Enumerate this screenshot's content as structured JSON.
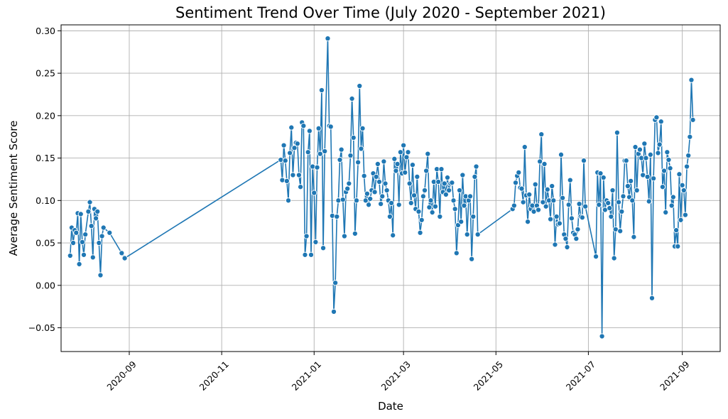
{
  "chart_data": {
    "type": "line",
    "title": "Sentiment Trend Over Time (July 2020 - September 2021)",
    "xlabel": "Date",
    "ylabel": "Average Sentiment Score",
    "xlim": [
      "2020-07-18",
      "2021-09-26"
    ],
    "ylim": [
      -0.078,
      0.307
    ],
    "grid": true,
    "legend": "none",
    "color": "#1f77b4",
    "marker": "circle",
    "x_ticks": [
      "2020-09",
      "2020-11",
      "2021-01",
      "2021-03",
      "2021-05",
      "2021-07",
      "2021-09"
    ],
    "y_ticks": [
      "−0.05",
      "0.00",
      "0.05",
      "0.10",
      "0.15",
      "0.20",
      "0.25",
      "0.30"
    ],
    "series": [
      {
        "points": [
          [
            "2020-07-24",
            0.035
          ],
          [
            "2020-07-25",
            0.068
          ],
          [
            "2020-07-26",
            0.05
          ],
          [
            "2020-07-27",
            0.065
          ],
          [
            "2020-07-28",
            0.062
          ],
          [
            "2020-07-29",
            0.085
          ],
          [
            "2020-07-30",
            0.025
          ],
          [
            "2020-07-31",
            0.084
          ],
          [
            "2020-08-01",
            0.051
          ],
          [
            "2020-08-02",
            0.036
          ],
          [
            "2020-08-03",
            0.06
          ],
          [
            "2020-08-05",
            0.087
          ],
          [
            "2020-08-06",
            0.098
          ],
          [
            "2020-08-07",
            0.07
          ],
          [
            "2020-08-08",
            0.033
          ],
          [
            "2020-08-09",
            0.09
          ],
          [
            "2020-08-10",
            0.079
          ],
          [
            "2020-08-11",
            0.087
          ],
          [
            "2020-08-12",
            0.05
          ],
          [
            "2020-08-13",
            0.012
          ],
          [
            "2020-08-14",
            0.058
          ],
          [
            "2020-08-15",
            0.068
          ],
          [
            "2020-08-19",
            0.062
          ],
          [
            "2020-08-27",
            0.038
          ],
          [
            "2020-08-29",
            0.032
          ],
          [
            "2020-12-10",
            0.148
          ],
          [
            "2020-12-11",
            0.124
          ],
          [
            "2020-12-12",
            0.165
          ],
          [
            "2020-12-13",
            0.147
          ],
          [
            "2020-12-14",
            0.123
          ],
          [
            "2020-12-15",
            0.1
          ],
          [
            "2020-12-16",
            0.156
          ],
          [
            "2020-12-17",
            0.186
          ],
          [
            "2020-12-18",
            0.13
          ],
          [
            "2020-12-19",
            0.162
          ],
          [
            "2020-12-20",
            0.168
          ],
          [
            "2020-12-21",
            0.167
          ],
          [
            "2020-12-22",
            0.13
          ],
          [
            "2020-12-23",
            0.116
          ],
          [
            "2020-12-24",
            0.192
          ],
          [
            "2020-12-25",
            0.188
          ],
          [
            "2020-12-26",
            0.036
          ],
          [
            "2020-12-27",
            0.058
          ],
          [
            "2020-12-28",
            0.157
          ],
          [
            "2020-12-29",
            0.182
          ],
          [
            "2020-12-30",
            0.036
          ],
          [
            "2020-12-31",
            0.14
          ],
          [
            "2021-01-01",
            0.109
          ],
          [
            "2021-01-02",
            0.051
          ],
          [
            "2021-01-03",
            0.139
          ],
          [
            "2021-01-04",
            0.185
          ],
          [
            "2021-01-05",
            0.155
          ],
          [
            "2021-01-06",
            0.23
          ],
          [
            "2021-01-07",
            0.044
          ],
          [
            "2021-01-08",
            0.158
          ],
          [
            "2021-01-10",
            0.291
          ],
          [
            "2021-01-11",
            0.188
          ],
          [
            "2021-01-12",
            0.187
          ],
          [
            "2021-01-13",
            0.082
          ],
          [
            "2021-01-14",
            -0.031
          ],
          [
            "2021-01-15",
            0.003
          ],
          [
            "2021-01-16",
            0.081
          ],
          [
            "2021-01-17",
            0.1
          ],
          [
            "2021-01-18",
            0.148
          ],
          [
            "2021-01-19",
            0.16
          ],
          [
            "2021-01-20",
            0.101
          ],
          [
            "2021-01-21",
            0.058
          ],
          [
            "2021-01-22",
            0.11
          ],
          [
            "2021-01-23",
            0.114
          ],
          [
            "2021-01-24",
            0.12
          ],
          [
            "2021-01-25",
            0.153
          ],
          [
            "2021-01-26",
            0.22
          ],
          [
            "2021-01-27",
            0.174
          ],
          [
            "2021-01-28",
            0.061
          ],
          [
            "2021-01-29",
            0.1
          ],
          [
            "2021-01-30",
            0.145
          ],
          [
            "2021-01-31",
            0.235
          ],
          [
            "2021-02-01",
            0.161
          ],
          [
            "2021-02-02",
            0.185
          ],
          [
            "2021-02-03",
            0.129
          ],
          [
            "2021-02-04",
            0.1
          ],
          [
            "2021-02-05",
            0.108
          ],
          [
            "2021-02-06",
            0.095
          ],
          [
            "2021-02-07",
            0.102
          ],
          [
            "2021-02-08",
            0.112
          ],
          [
            "2021-02-09",
            0.132
          ],
          [
            "2021-02-10",
            0.11
          ],
          [
            "2021-02-11",
            0.128
          ],
          [
            "2021-02-12",
            0.143
          ],
          [
            "2021-02-13",
            0.122
          ],
          [
            "2021-02-14",
            0.096
          ],
          [
            "2021-02-15",
            0.105
          ],
          [
            "2021-02-16",
            0.146
          ],
          [
            "2021-02-17",
            0.12
          ],
          [
            "2021-02-18",
            0.112
          ],
          [
            "2021-02-19",
            0.1
          ],
          [
            "2021-02-20",
            0.081
          ],
          [
            "2021-02-21",
            0.097
          ],
          [
            "2021-02-22",
            0.059
          ],
          [
            "2021-02-23",
            0.149
          ],
          [
            "2021-02-24",
            0.135
          ],
          [
            "2021-02-25",
            0.143
          ],
          [
            "2021-02-26",
            0.095
          ],
          [
            "2021-02-27",
            0.157
          ],
          [
            "2021-02-28",
            0.132
          ],
          [
            "2021-03-01",
            0.165
          ],
          [
            "2021-03-02",
            0.133
          ],
          [
            "2021-03-03",
            0.151
          ],
          [
            "2021-03-04",
            0.157
          ],
          [
            "2021-03-05",
            0.12
          ],
          [
            "2021-03-06",
            0.097
          ],
          [
            "2021-03-07",
            0.142
          ],
          [
            "2021-03-08",
            0.106
          ],
          [
            "2021-03-09",
            0.09
          ],
          [
            "2021-03-10",
            0.128
          ],
          [
            "2021-03-11",
            0.087
          ],
          [
            "2021-03-12",
            0.062
          ],
          [
            "2021-03-13",
            0.077
          ],
          [
            "2021-03-14",
            0.105
          ],
          [
            "2021-03-15",
            0.112
          ],
          [
            "2021-03-16",
            0.135
          ],
          [
            "2021-03-17",
            0.155
          ],
          [
            "2021-03-18",
            0.092
          ],
          [
            "2021-03-19",
            0.1
          ],
          [
            "2021-03-20",
            0.086
          ],
          [
            "2021-03-21",
            0.122
          ],
          [
            "2021-03-22",
            0.093
          ],
          [
            "2021-03-23",
            0.137
          ],
          [
            "2021-03-24",
            0.122
          ],
          [
            "2021-03-25",
            0.081
          ],
          [
            "2021-03-26",
            0.137
          ],
          [
            "2021-03-27",
            0.11
          ],
          [
            "2021-03-28",
            0.12
          ],
          [
            "2021-03-29",
            0.107
          ],
          [
            "2021-03-30",
            0.127
          ],
          [
            "2021-03-31",
            0.112
          ],
          [
            "2021-04-01",
            0.12
          ],
          [
            "2021-04-02",
            0.121
          ],
          [
            "2021-04-03",
            0.1
          ],
          [
            "2021-04-04",
            0.09
          ],
          [
            "2021-04-05",
            0.038
          ],
          [
            "2021-04-06",
            0.071
          ],
          [
            "2021-04-07",
            0.112
          ],
          [
            "2021-04-08",
            0.075
          ],
          [
            "2021-04-09",
            0.13
          ],
          [
            "2021-04-10",
            0.094
          ],
          [
            "2021-04-11",
            0.105
          ],
          [
            "2021-04-12",
            0.06
          ],
          [
            "2021-04-13",
            0.1
          ],
          [
            "2021-04-14",
            0.105
          ],
          [
            "2021-04-15",
            0.031
          ],
          [
            "2021-04-16",
            0.081
          ],
          [
            "2021-04-17",
            0.128
          ],
          [
            "2021-04-18",
            0.14
          ],
          [
            "2021-04-19",
            0.06
          ],
          [
            "2021-05-12",
            0.09
          ],
          [
            "2021-05-13",
            0.094
          ],
          [
            "2021-05-14",
            0.121
          ],
          [
            "2021-05-15",
            0.129
          ],
          [
            "2021-05-16",
            0.133
          ],
          [
            "2021-05-17",
            0.115
          ],
          [
            "2021-05-18",
            0.114
          ],
          [
            "2021-05-19",
            0.098
          ],
          [
            "2021-05-20",
            0.163
          ],
          [
            "2021-05-21",
            0.106
          ],
          [
            "2021-05-22",
            0.075
          ],
          [
            "2021-05-23",
            0.107
          ],
          [
            "2021-05-24",
            0.09
          ],
          [
            "2021-05-25",
            0.094
          ],
          [
            "2021-05-26",
            0.087
          ],
          [
            "2021-05-27",
            0.119
          ],
          [
            "2021-05-28",
            0.094
          ],
          [
            "2021-05-29",
            0.089
          ],
          [
            "2021-05-30",
            0.146
          ],
          [
            "2021-05-31",
            0.178
          ],
          [
            "2021-06-01",
            0.098
          ],
          [
            "2021-06-02",
            0.143
          ],
          [
            "2021-06-03",
            0.093
          ],
          [
            "2021-06-04",
            0.113
          ],
          [
            "2021-06-05",
            0.1
          ],
          [
            "2021-06-06",
            0.078
          ],
          [
            "2021-06-07",
            0.117
          ],
          [
            "2021-06-08",
            0.1
          ],
          [
            "2021-06-09",
            0.048
          ],
          [
            "2021-06-10",
            0.081
          ],
          [
            "2021-06-11",
            0.072
          ],
          [
            "2021-06-12",
            0.073
          ],
          [
            "2021-06-13",
            0.154
          ],
          [
            "2021-06-14",
            0.103
          ],
          [
            "2021-06-15",
            0.06
          ],
          [
            "2021-06-16",
            0.055
          ],
          [
            "2021-06-17",
            0.045
          ],
          [
            "2021-06-18",
            0.095
          ],
          [
            "2021-06-19",
            0.124
          ],
          [
            "2021-06-20",
            0.079
          ],
          [
            "2021-06-21",
            0.062
          ],
          [
            "2021-06-22",
            0.06
          ],
          [
            "2021-06-23",
            0.055
          ],
          [
            "2021-06-24",
            0.066
          ],
          [
            "2021-06-25",
            0.096
          ],
          [
            "2021-06-26",
            0.081
          ],
          [
            "2021-06-27",
            0.08
          ],
          [
            "2021-06-28",
            0.147
          ],
          [
            "2021-06-29",
            0.093
          ],
          [
            "2021-07-06",
            0.034
          ],
          [
            "2021-07-07",
            0.133
          ],
          [
            "2021-07-08",
            0.095
          ],
          [
            "2021-07-09",
            0.132
          ],
          [
            "2021-07-10",
            -0.06
          ],
          [
            "2021-07-11",
            0.127
          ],
          [
            "2021-07-12",
            0.089
          ],
          [
            "2021-07-13",
            0.1
          ],
          [
            "2021-07-14",
            0.097
          ],
          [
            "2021-07-15",
            0.091
          ],
          [
            "2021-07-16",
            0.081
          ],
          [
            "2021-07-17",
            0.112
          ],
          [
            "2021-07-18",
            0.032
          ],
          [
            "2021-07-19",
            0.066
          ],
          [
            "2021-07-20",
            0.18
          ],
          [
            "2021-07-21",
            0.098
          ],
          [
            "2021-07-22",
            0.064
          ],
          [
            "2021-07-23",
            0.087
          ],
          [
            "2021-07-24",
            0.105
          ],
          [
            "2021-07-25",
            0.147
          ],
          [
            "2021-07-26",
            0.147
          ],
          [
            "2021-07-27",
            0.117
          ],
          [
            "2021-07-28",
            0.104
          ],
          [
            "2021-07-29",
            0.123
          ],
          [
            "2021-07-30",
            0.1
          ],
          [
            "2021-07-31",
            0.057
          ],
          [
            "2021-08-01",
            0.163
          ],
          [
            "2021-08-02",
            0.112
          ],
          [
            "2021-08-03",
            0.155
          ],
          [
            "2021-08-04",
            0.16
          ],
          [
            "2021-08-05",
            0.15
          ],
          [
            "2021-08-06",
            0.13
          ],
          [
            "2021-08-07",
            0.167
          ],
          [
            "2021-08-08",
            0.15
          ],
          [
            "2021-08-09",
            0.128
          ],
          [
            "2021-08-10",
            0.099
          ],
          [
            "2021-08-11",
            0.154
          ],
          [
            "2021-08-12",
            -0.015
          ],
          [
            "2021-08-13",
            0.126
          ],
          [
            "2021-08-14",
            0.195
          ],
          [
            "2021-08-15",
            0.198
          ],
          [
            "2021-08-16",
            0.156
          ],
          [
            "2021-08-17",
            0.166
          ],
          [
            "2021-08-18",
            0.193
          ],
          [
            "2021-08-19",
            0.116
          ],
          [
            "2021-08-20",
            0.135
          ],
          [
            "2021-08-21",
            0.086
          ],
          [
            "2021-08-22",
            0.157
          ],
          [
            "2021-08-23",
            0.148
          ],
          [
            "2021-08-24",
            0.138
          ],
          [
            "2021-08-25",
            0.094
          ],
          [
            "2021-08-26",
            0.104
          ],
          [
            "2021-08-27",
            0.046
          ],
          [
            "2021-08-28",
            0.065
          ],
          [
            "2021-08-29",
            0.046
          ],
          [
            "2021-08-30",
            0.131
          ],
          [
            "2021-08-31",
            0.077
          ],
          [
            "2021-09-01",
            0.118
          ],
          [
            "2021-09-02",
            0.112
          ],
          [
            "2021-09-03",
            0.083
          ],
          [
            "2021-09-04",
            0.14
          ],
          [
            "2021-09-05",
            0.153
          ],
          [
            "2021-09-06",
            0.175
          ],
          [
            "2021-09-07",
            0.242
          ],
          [
            "2021-09-08",
            0.195
          ]
        ]
      }
    ]
  }
}
